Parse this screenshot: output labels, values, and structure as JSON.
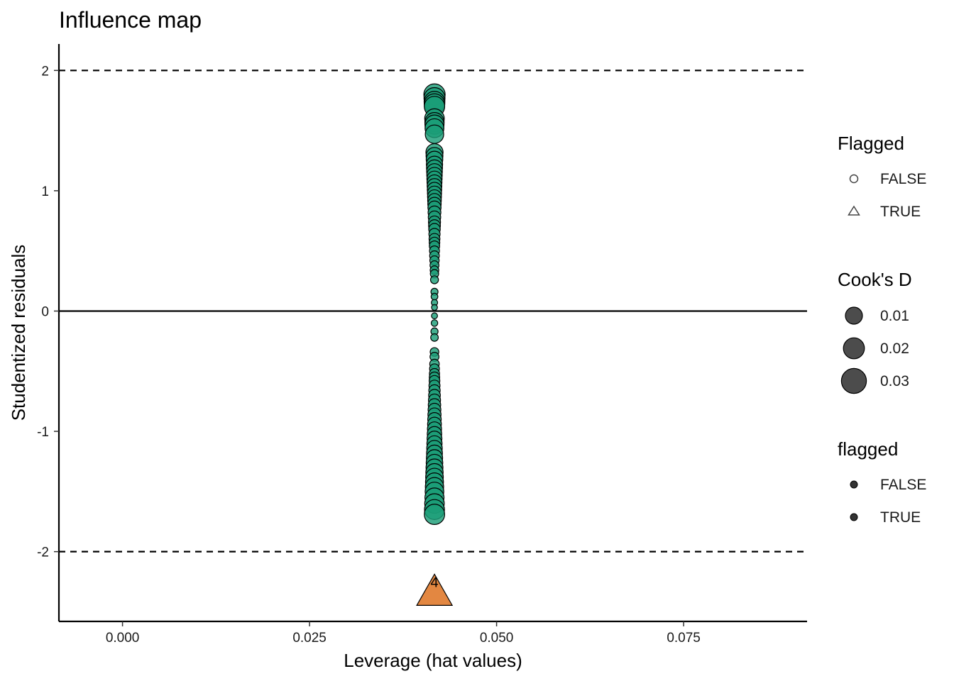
{
  "chart_data": {
    "type": "scatter",
    "title": "Influence map",
    "xlabel": "Leverage (hat values)",
    "ylabel": "Studentized residuals",
    "xlim": [
      -0.0085,
      0.0915
    ],
    "ylim": [
      -2.58,
      2.22
    ],
    "xticks": [
      0,
      0.025,
      0.05,
      0.075
    ],
    "xtick_labels": [
      "0.000",
      "0.025",
      "0.050",
      "0.075"
    ],
    "yticks": [
      -2,
      -1,
      0,
      1,
      2
    ],
    "ytick_labels": [
      "-2",
      "-1",
      "0",
      "1",
      "2"
    ],
    "reference_lines": [
      {
        "y": 2,
        "style": "dashed"
      },
      {
        "y": 0,
        "style": "solid"
      },
      {
        "y": -2,
        "style": "dashed"
      }
    ],
    "grid": false,
    "colors": {
      "not_flagged": "#1B9E77",
      "flagged": "#D95F02",
      "outline": "#000000"
    },
    "series": [
      {
        "flagged": false,
        "shape": "circle",
        "x": 0.0417,
        "y": [
          1.8,
          1.77,
          1.74,
          1.72,
          1.7,
          1.6,
          1.57,
          1.55,
          1.52,
          1.47,
          1.32,
          1.29,
          1.26,
          1.22,
          1.19,
          1.16,
          1.13,
          1.1,
          1.07,
          1.04,
          1.01,
          0.98,
          0.95,
          0.92,
          0.89,
          0.86,
          0.82,
          0.78,
          0.74,
          0.71,
          0.68,
          0.64,
          0.6,
          0.57,
          0.54,
          0.5,
          0.46,
          0.42,
          0.38,
          0.34,
          0.31,
          0.26,
          0.16,
          0.12,
          0.07,
          0.03,
          -0.04,
          -0.1,
          -0.17,
          -0.22,
          -0.34,
          -0.38,
          -0.44,
          -0.48,
          -0.52,
          -0.55,
          -0.58,
          -0.62,
          -0.66,
          -0.7,
          -0.74,
          -0.78,
          -0.82,
          -0.86,
          -0.9,
          -0.94,
          -0.98,
          -1.02,
          -1.06,
          -1.1,
          -1.14,
          -1.18,
          -1.22,
          -1.26,
          -1.3,
          -1.34,
          -1.38,
          -1.42,
          -1.46,
          -1.5,
          -1.55,
          -1.6,
          -1.65,
          -1.69
        ]
      },
      {
        "flagged": true,
        "shape": "triangle",
        "x": 0.0417,
        "y": [
          -2.33
        ],
        "label": "4",
        "cooks_d": 0.045
      }
    ],
    "legends": [
      {
        "title": "Flagged",
        "entries": [
          {
            "label": "FALSE",
            "shape": "circle"
          },
          {
            "label": "TRUE",
            "shape": "triangle"
          }
        ]
      },
      {
        "title": "Cook's D",
        "entries": [
          {
            "label": "0.01",
            "value": 0.01
          },
          {
            "label": "0.02",
            "value": 0.02
          },
          {
            "label": "0.03",
            "value": 0.03
          }
        ]
      },
      {
        "title": "flagged",
        "entries": [
          {
            "label": "FALSE"
          },
          {
            "label": "TRUE"
          }
        ]
      }
    ],
    "legend_position": "right"
  }
}
